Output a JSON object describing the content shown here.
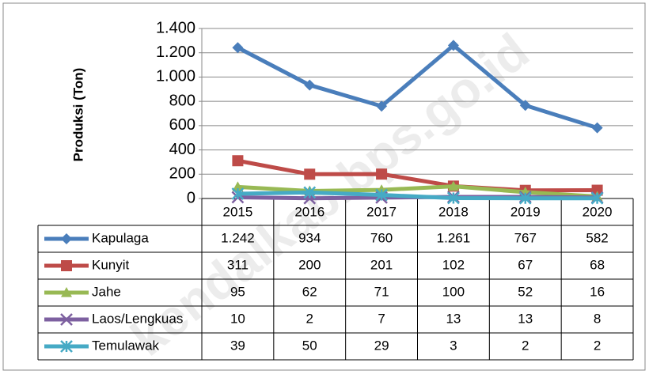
{
  "chart_data": {
    "type": "line",
    "ylabel": "Produksi (Ton)",
    "watermark": "kendalkab.bps.go.id",
    "categories": [
      "2015",
      "2016",
      "2017",
      "2018",
      "2019",
      "2020"
    ],
    "ylim": [
      0,
      1400
    ],
    "yticks": [
      0,
      200,
      400,
      600,
      800,
      {
        "value": 1000,
        "label": "1.000"
      },
      {
        "value": 1200,
        "label": "1.200"
      },
      {
        "value": 1400,
        "label": "1.400"
      }
    ],
    "grid": true,
    "series": [
      {
        "name": "Kapulaga",
        "color": "#4a7ebb",
        "marker": "diamond",
        "values": [
          1242,
          934,
          760,
          1261,
          767,
          582
        ],
        "value_labels": [
          "1.242",
          "934",
          "760",
          "1.261",
          "767",
          "582"
        ]
      },
      {
        "name": "Kunyit",
        "color": "#be4b48",
        "marker": "square",
        "values": [
          311,
          200,
          201,
          102,
          67,
          68
        ],
        "value_labels": [
          "311",
          "200",
          "201",
          "102",
          "67",
          "68"
        ]
      },
      {
        "name": "Jahe",
        "color": "#98b954",
        "marker": "triangle",
        "values": [
          95,
          62,
          71,
          100,
          52,
          16
        ],
        "value_labels": [
          "95",
          "62",
          "71",
          "100",
          "52",
          "16"
        ]
      },
      {
        "name": "Laos/Lengkuas",
        "color": "#7d60a0",
        "marker": "x",
        "values": [
          10,
          2,
          7,
          13,
          13,
          8
        ],
        "value_labels": [
          "10",
          "2",
          "7",
          "13",
          "13",
          "8"
        ]
      },
      {
        "name": "Temulawak",
        "color": "#46aac5",
        "marker": "star",
        "values": [
          39,
          50,
          29,
          3,
          2,
          2
        ],
        "value_labels": [
          "39",
          "50",
          "29",
          "3",
          "2",
          "2"
        ]
      }
    ]
  }
}
